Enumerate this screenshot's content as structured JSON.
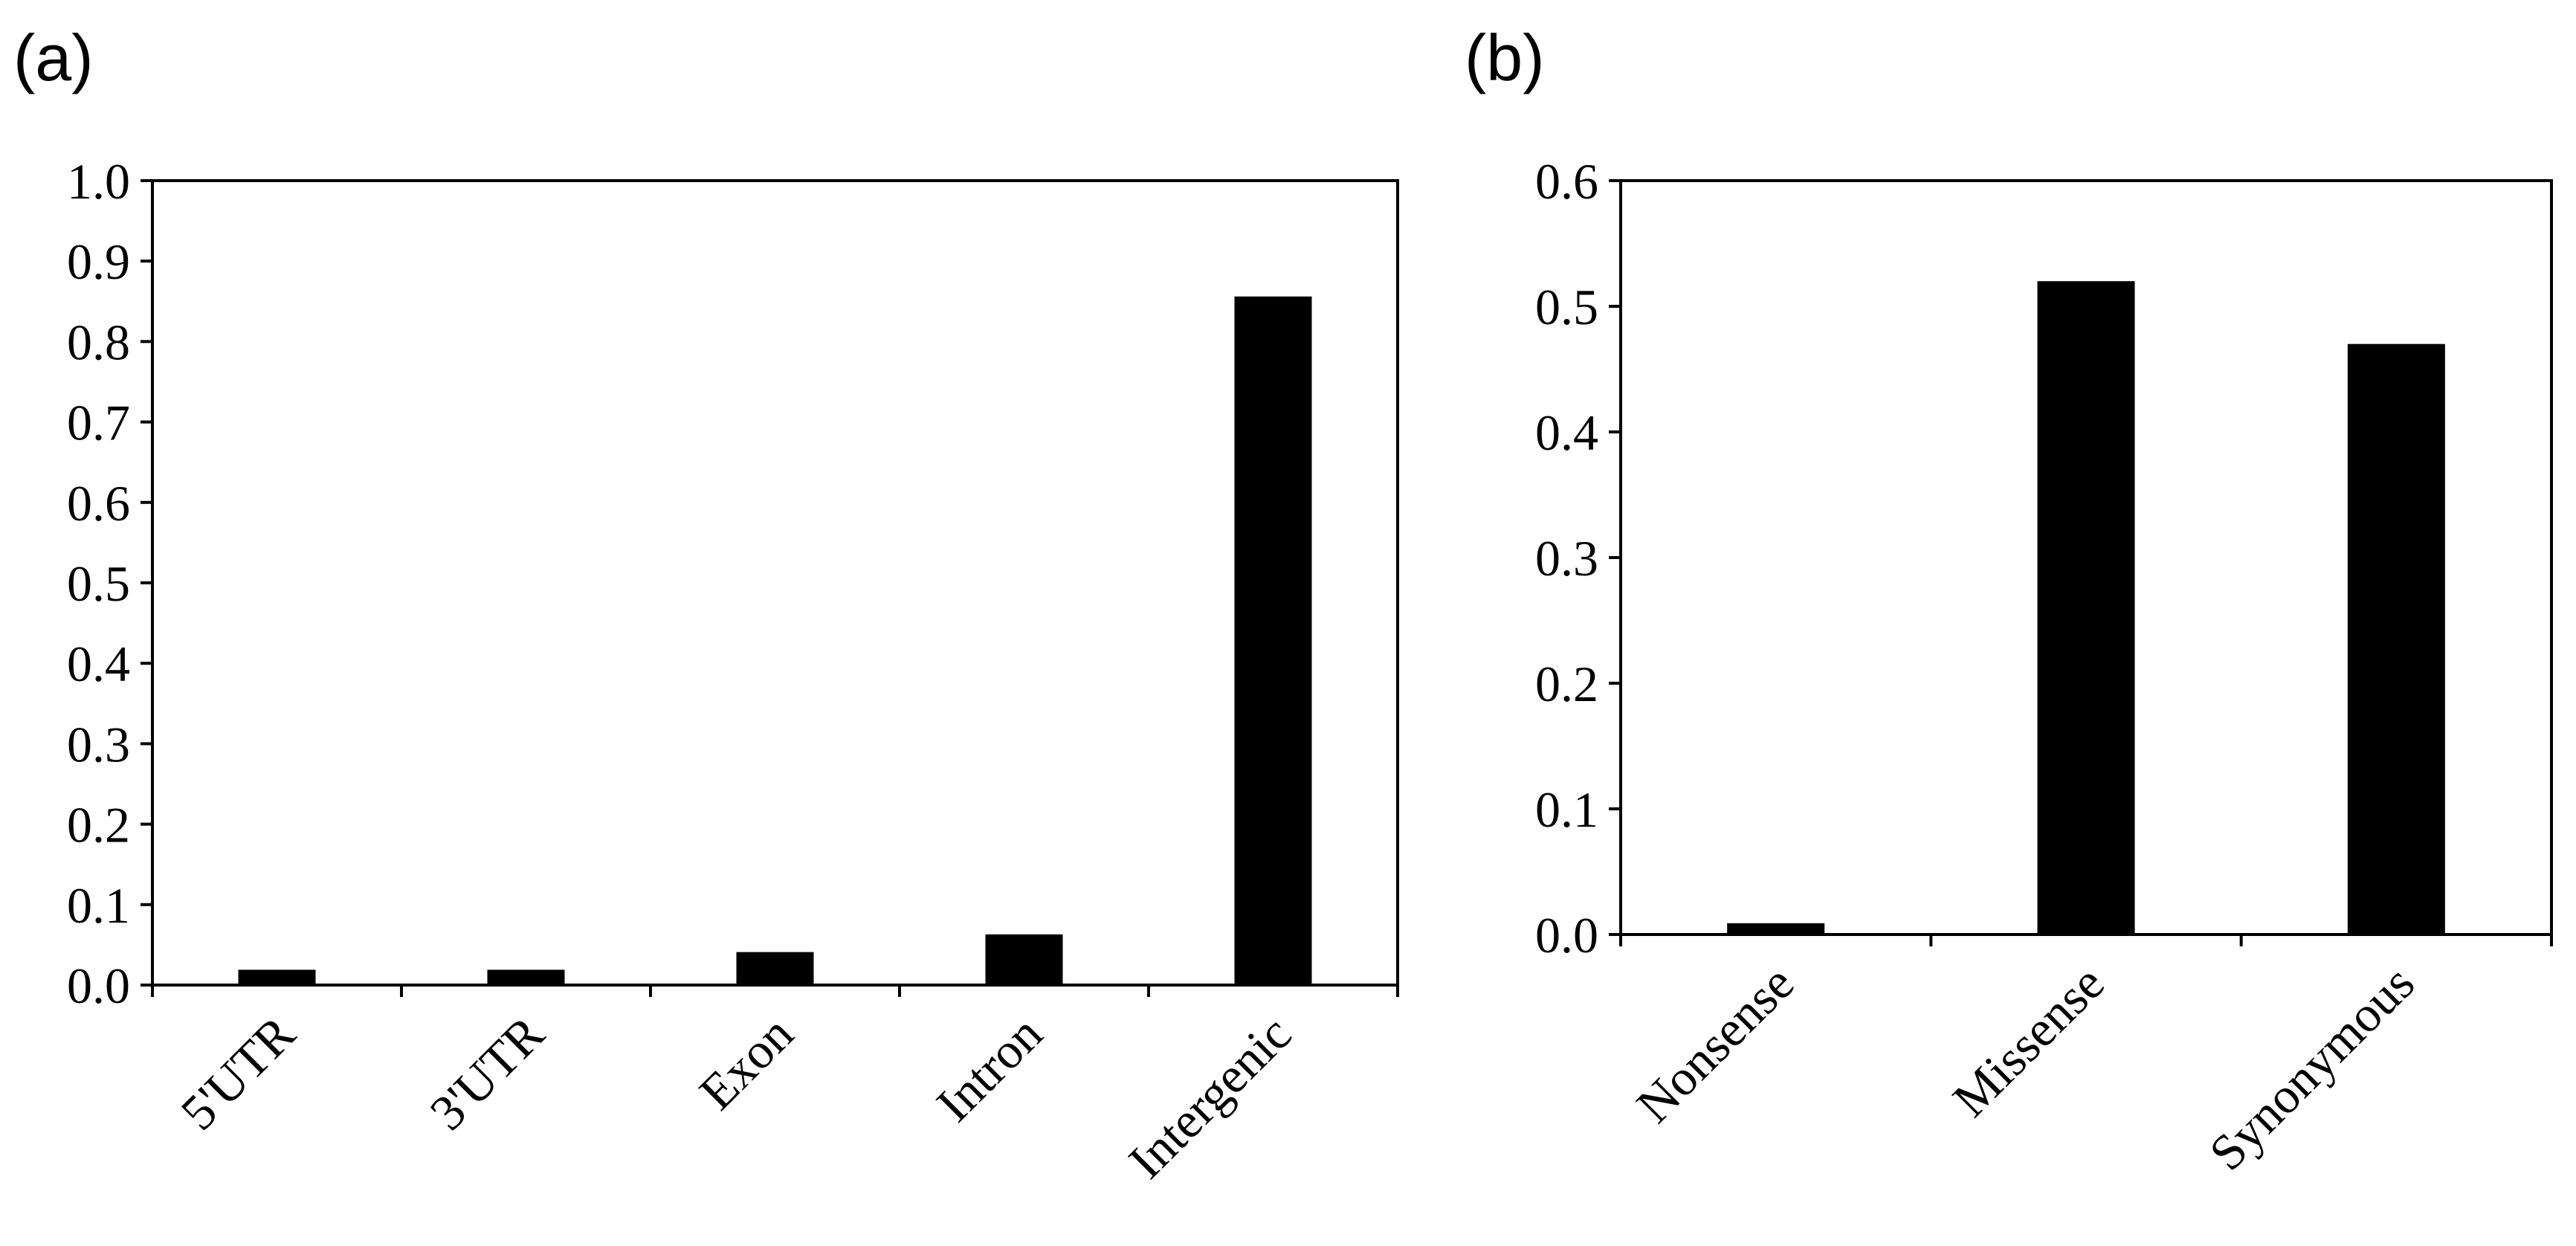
{
  "chart_data": [
    {
      "panel_label": "(a)",
      "type": "bar",
      "categories": [
        "5'UTR",
        "3'UTR",
        "Exon",
        "Intron",
        "Intergenic"
      ],
      "values": [
        0.019,
        0.019,
        0.041,
        0.063,
        0.856
      ],
      "ylim": [
        0,
        1.0
      ],
      "yticks": [
        "0.0",
        "0.1",
        "0.2",
        "0.3",
        "0.4",
        "0.5",
        "0.6",
        "0.7",
        "0.8",
        "0.9",
        "1.0"
      ],
      "bar_color": "#000000",
      "grid": false
    },
    {
      "panel_label": "(b)",
      "type": "bar",
      "categories": [
        "Nonsense",
        "Missense",
        "Synonymous"
      ],
      "values": [
        0.009,
        0.52,
        0.47
      ],
      "ylim": [
        0,
        0.6
      ],
      "yticks": [
        "0.0",
        "0.1",
        "0.2",
        "0.3",
        "0.4",
        "0.5",
        "0.6"
      ],
      "bar_color": "#000000",
      "grid": false
    }
  ]
}
